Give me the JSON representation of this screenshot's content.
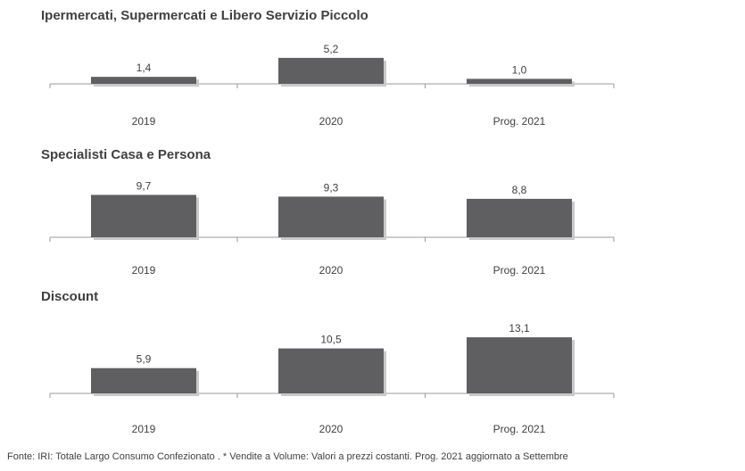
{
  "colors": {
    "bar": "#5f5f61",
    "axis": "#9a9a9a",
    "text": "#404040"
  },
  "chart_data": [
    {
      "type": "bar",
      "title": "Ipermercati, Supermercati e Libero Servizio Piccolo",
      "categories": [
        "2019",
        "2020",
        "Prog. 2021"
      ],
      "values": [
        1.4,
        5.2,
        1.0
      ],
      "value_labels": [
        "1,4",
        "5,2",
        "1,0"
      ],
      "ylim": [
        0,
        14
      ]
    },
    {
      "type": "bar",
      "title": "Specialisti Casa e Persona",
      "categories": [
        "2019",
        "2020",
        "Prog. 2021"
      ],
      "values": [
        9.7,
        9.3,
        8.8
      ],
      "value_labels": [
        "9,7",
        "9,3",
        "8,8"
      ],
      "ylim": [
        0,
        14
      ]
    },
    {
      "type": "bar",
      "title": "Discount",
      "categories": [
        "2019",
        "2020",
        "Prog. 2021"
      ],
      "values": [
        5.9,
        10.5,
        13.1
      ],
      "value_labels": [
        "5,9",
        "10,5",
        "13,1"
      ],
      "ylim": [
        0,
        14
      ]
    }
  ],
  "footer": {
    "source": "Fonte: IRI: Totale Largo Consumo Confezionato . * Vendite a Volume: Valori a prezzi costanti.   Prog. 2021 aggiornato a Settembre"
  }
}
